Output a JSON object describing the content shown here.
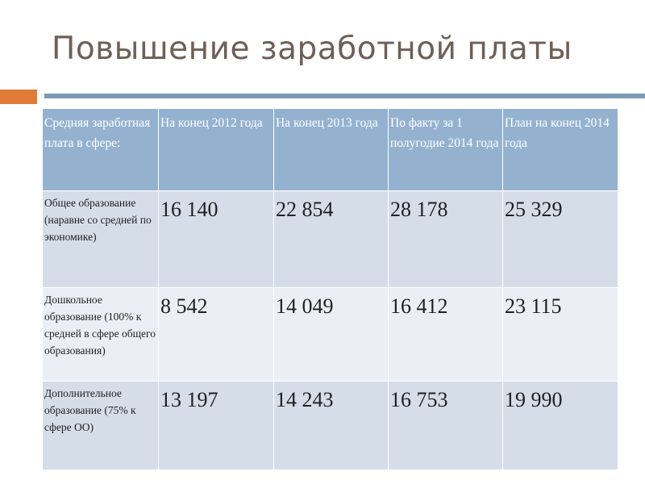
{
  "slide": {
    "title": "Повышение заработной платы"
  },
  "colors": {
    "title_text": "#6e5f57",
    "accent_square": "#e07b39",
    "divider_line": "#7d9ab8",
    "header_background": "#94b2d0",
    "row_dark": "#d5dde9",
    "row_light": "#ebeff5"
  },
  "table": {
    "headers": [
      "Средняя заработная плата в сфере:",
      "На конец 2012 года",
      "На конец 2013 года",
      "По факту за 1 полугодие 2014 года",
      "План на конец 2014 года"
    ],
    "rows": [
      {
        "label": "Общее образование (наравне со средней по экономике)",
        "values": [
          "16 140",
          "22 854",
          "28 178",
          "25 329"
        ]
      },
      {
        "label": "Дошкольное образование (100% к средней в сфере общего образования)",
        "values": [
          "8 542",
          "14 049",
          "16 412",
          "23 115"
        ]
      },
      {
        "label": "Дополнительное образование (75% к сфере ОО)",
        "values": [
          "13 197",
          "14 243",
          "16 753",
          "19 990"
        ]
      }
    ]
  }
}
